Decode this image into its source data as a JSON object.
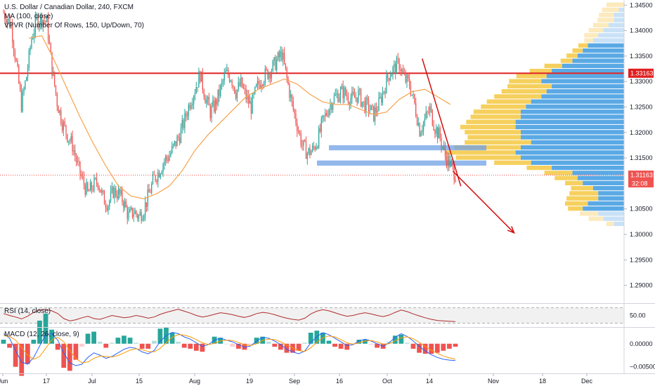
{
  "legend": {
    "title": "U.S. Dollar / Canadian Dollar, 240, FXCM",
    "ma": "MA (100, close)",
    "vpvr": "VPVR (Number Of Rows, 150, Up/Down, 70)",
    "rsi": "RSI (14, close)",
    "macd": "MACD (12, 26, close, 9)"
  },
  "price_labels": {
    "resistance": "1.33163",
    "current": "1.31163",
    "countdown": "32:08"
  },
  "colors": {
    "up": "#26a69a",
    "down": "#ef5350",
    "ma": "#f7a24b",
    "resistance": "#e02020",
    "zone": "#6fa0e6",
    "vp_up": "#f5c842",
    "vp_down": "#3d9ae0",
    "rsi": "#b02c2c",
    "macd": "#2962ff",
    "signal": "#ff9800",
    "arrow": "#d01010"
  },
  "chart_data": [
    {
      "type": "candlestick",
      "title": "U.S. Dollar / Canadian Dollar, 240, FXCM",
      "x_ticks": [
        "Jun",
        "17",
        "Jul",
        "15",
        "Aug",
        "19",
        "Sep",
        "16",
        "Oct",
        "14",
        "Nov",
        "18",
        "Dec"
      ],
      "y_ticks": [
        1.345,
        1.34,
        1.335,
        1.33,
        1.325,
        1.32,
        1.315,
        1.305,
        1.3,
        1.295,
        1.29
      ],
      "y_tick_labels": [
        "1.34500",
        "1.34000",
        "1.33500",
        "1.33000",
        "1.32500",
        "1.32000",
        "1.31500",
        "1.30500",
        "1.30000",
        "1.29500",
        "1.29000"
      ],
      "ylim": [
        1.2865,
        1.346
      ],
      "close_trend": [
        [
          0,
          1.3435
        ],
        [
          3,
          1.341
        ],
        [
          5,
          1.3335
        ],
        [
          7,
          1.3255
        ],
        [
          9,
          1.331
        ],
        [
          11,
          1.3385
        ],
        [
          13,
          1.342
        ],
        [
          15,
          1.3425
        ],
        [
          17,
          1.3415
        ],
        [
          19,
          1.3325
        ],
        [
          21,
          1.326
        ],
        [
          23,
          1.322
        ],
        [
          25,
          1.3195
        ],
        [
          27,
          1.3175
        ],
        [
          29,
          1.3135
        ],
        [
          31,
          1.3105
        ],
        [
          33,
          1.308
        ],
        [
          35,
          1.3095
        ],
        [
          37,
          1.3105
        ],
        [
          39,
          1.307
        ],
        [
          41,
          1.306
        ],
        [
          43,
          1.3085
        ],
        [
          45,
          1.308
        ],
        [
          47,
          1.3065
        ],
        [
          49,
          1.3035
        ],
        [
          51,
          1.3045
        ],
        [
          53,
          1.3035
        ],
        [
          55,
          1.305
        ],
        [
          57,
          1.308
        ],
        [
          59,
          1.311
        ],
        [
          61,
          1.3125
        ],
        [
          63,
          1.3145
        ],
        [
          65,
          1.3155
        ],
        [
          67,
          1.3175
        ],
        [
          69,
          1.3195
        ],
        [
          71,
          1.3225
        ],
        [
          73,
          1.326
        ],
        [
          75,
          1.3285
        ],
        [
          77,
          1.3315
        ],
        [
          79,
          1.327
        ],
        [
          81,
          1.324
        ],
        [
          83,
          1.3255
        ],
        [
          85,
          1.3285
        ],
        [
          87,
          1.3315
        ],
        [
          89,
          1.331
        ],
        [
          91,
          1.328
        ],
        [
          93,
          1.3295
        ],
        [
          95,
          1.327
        ],
        [
          97,
          1.325
        ],
        [
          99,
          1.3285
        ],
        [
          101,
          1.3305
        ],
        [
          103,
          1.3315
        ],
        [
          105,
          1.3325
        ],
        [
          107,
          1.334
        ],
        [
          109,
          1.3355
        ],
        [
          111,
          1.3305
        ],
        [
          113,
          1.3255
        ],
        [
          115,
          1.3215
        ],
        [
          117,
          1.3175
        ],
        [
          119,
          1.316
        ],
        [
          121,
          1.3165
        ],
        [
          123,
          1.3185
        ],
        [
          125,
          1.322
        ],
        [
          127,
          1.3245
        ],
        [
          129,
          1.3265
        ],
        [
          131,
          1.3275
        ],
        [
          133,
          1.328
        ],
        [
          135,
          1.327
        ],
        [
          137,
          1.3265
        ],
        [
          139,
          1.3275
        ],
        [
          141,
          1.3255
        ],
        [
          143,
          1.325
        ],
        [
          145,
          1.3235
        ],
        [
          147,
          1.3255
        ],
        [
          149,
          1.3285
        ],
        [
          151,
          1.3315
        ],
        [
          153,
          1.3325
        ],
        [
          155,
          1.3335
        ],
        [
          157,
          1.3305
        ],
        [
          159,
          1.3295
        ],
        [
          161,
          1.3255
        ],
        [
          163,
          1.3205
        ],
        [
          165,
          1.3225
        ],
        [
          167,
          1.3245
        ],
        [
          169,
          1.321
        ],
        [
          171,
          1.319
        ],
        [
          173,
          1.3155
        ],
        [
          175,
          1.3135
        ],
        [
          177,
          1.3118
        ]
      ],
      "ma_100": [
        [
          10,
          1.3385
        ],
        [
          15,
          1.339
        ],
        [
          20,
          1.334
        ],
        [
          25,
          1.3285
        ],
        [
          30,
          1.323
        ],
        [
          35,
          1.318
        ],
        [
          40,
          1.3135
        ],
        [
          45,
          1.3095
        ],
        [
          50,
          1.3075
        ],
        [
          55,
          1.307
        ],
        [
          60,
          1.308
        ],
        [
          65,
          1.3095
        ],
        [
          70,
          1.3125
        ],
        [
          75,
          1.3165
        ],
        [
          80,
          1.3195
        ],
        [
          85,
          1.322
        ],
        [
          90,
          1.3245
        ],
        [
          95,
          1.327
        ],
        [
          100,
          1.3285
        ],
        [
          105,
          1.3295
        ],
        [
          110,
          1.3305
        ],
        [
          115,
          1.3295
        ],
        [
          120,
          1.3275
        ],
        [
          125,
          1.326
        ],
        [
          130,
          1.3255
        ],
        [
          135,
          1.3255
        ],
        [
          140,
          1.3245
        ],
        [
          145,
          1.3235
        ],
        [
          150,
          1.324
        ],
        [
          155,
          1.3265
        ],
        [
          160,
          1.328
        ],
        [
          165,
          1.3285
        ],
        [
          170,
          1.327
        ],
        [
          175,
          1.3255
        ]
      ],
      "resistance_level": 1.33163,
      "current_price": 1.31163,
      "support_zones": [
        {
          "from": 1.3165,
          "to": 1.3175
        },
        {
          "from": 1.3135,
          "to": 1.3145
        }
      ],
      "volume_profile": [
        [
          1.345,
          0.12,
          0.0
        ],
        [
          1.344,
          0.14,
          0.01
        ],
        [
          1.343,
          0.15,
          0.02
        ],
        [
          1.342,
          0.16,
          0.02
        ],
        [
          1.341,
          0.18,
          0.03
        ],
        [
          1.34,
          0.2,
          0.04
        ],
        [
          1.339,
          0.22,
          0.05
        ],
        [
          1.338,
          0.21,
          0.06
        ],
        [
          1.337,
          0.24,
          0.07
        ],
        [
          1.336,
          0.27,
          0.08
        ],
        [
          1.335,
          0.3,
          0.09
        ],
        [
          1.334,
          0.33,
          0.1
        ],
        [
          1.333,
          0.42,
          0.12
        ],
        [
          1.332,
          0.5,
          0.14
        ],
        [
          1.331,
          0.58,
          0.15
        ],
        [
          1.33,
          0.62,
          0.16
        ],
        [
          1.329,
          0.65,
          0.14
        ],
        [
          1.328,
          0.68,
          0.15
        ],
        [
          1.327,
          0.72,
          0.16
        ],
        [
          1.326,
          0.75,
          0.18
        ],
        [
          1.325,
          0.78,
          0.19
        ],
        [
          1.324,
          0.82,
          0.2
        ],
        [
          1.323,
          0.84,
          0.2
        ],
        [
          1.322,
          0.86,
          0.21
        ],
        [
          1.321,
          0.9,
          0.21
        ],
        [
          1.32,
          0.88,
          0.2
        ],
        [
          1.319,
          0.86,
          0.2
        ],
        [
          1.318,
          0.9,
          0.18
        ],
        [
          1.317,
          0.95,
          0.2
        ],
        [
          1.316,
          1.0,
          0.21
        ],
        [
          1.315,
          0.94,
          0.2
        ],
        [
          1.314,
          0.7,
          0.18
        ],
        [
          1.313,
          0.52,
          0.14
        ],
        [
          1.312,
          0.44,
          0.1
        ],
        [
          1.311,
          0.38,
          0.09
        ],
        [
          1.31,
          0.32,
          0.08
        ],
        [
          1.309,
          0.3,
          0.06
        ],
        [
          1.308,
          0.32,
          0.05
        ],
        [
          1.307,
          0.34,
          0.05
        ],
        [
          1.306,
          0.33,
          0.07
        ],
        [
          1.305,
          0.3,
          0.08
        ],
        [
          1.304,
          0.25,
          0.05
        ],
        [
          1.303,
          0.2,
          0.04
        ],
        [
          1.302,
          0.1,
          0.02
        ]
      ],
      "projection": {
        "from": [
          176,
          1.3124
        ],
        "to": [
          200,
          1.3003
        ]
      },
      "trendline": {
        "from": [
          164,
          1.3345
        ],
        "to": [
          175,
          1.3136
        ]
      }
    },
    {
      "type": "line",
      "title": "RSI (14, close)",
      "y_ticks": [
        50
      ],
      "y_tick_labels": [
        "50.00"
      ],
      "ylim": [
        20,
        80
      ],
      "guides": [
        70,
        30
      ],
      "band": [
        30,
        70
      ],
      "x_range": [
        0,
        177
      ],
      "values": [
        55,
        50,
        46,
        41,
        48,
        58,
        64,
        66,
        62,
        55,
        42,
        36,
        39,
        44,
        48,
        42,
        40,
        45,
        50,
        47,
        44,
        46,
        50,
        47,
        43,
        46,
        53,
        58,
        62,
        66,
        61,
        56,
        50,
        46,
        49,
        53,
        57,
        55,
        52,
        48,
        45,
        49,
        55,
        58,
        56,
        52,
        47,
        43,
        40,
        38,
        43,
        54,
        61,
        65,
        62,
        57,
        52,
        48,
        50,
        54,
        57,
        54,
        50,
        47,
        51,
        58,
        64,
        60,
        54,
        49,
        44,
        40,
        37,
        36,
        35,
        34
      ]
    },
    {
      "type": "bar",
      "title": "MACD (12, 26, close, 9)",
      "y_ticks": [
        0.0,
        -0.005
      ],
      "y_tick_labels": [
        "0.00000",
        "−0.00500"
      ],
      "ylim": [
        -0.0065,
        0.0035
      ],
      "x_range": [
        0,
        177
      ],
      "macd": [
        0.0022,
        0.0012,
        -0.0015,
        -0.004,
        -0.0045,
        -0.003,
        -0.0005,
        0.002,
        0.0022,
        0.0008,
        -0.002,
        -0.0042,
        -0.0048,
        -0.0045,
        -0.003,
        -0.002,
        -0.0025,
        -0.0032,
        -0.0028,
        -0.002,
        -0.0012,
        -0.0008,
        -0.001,
        -0.0018,
        -0.0022,
        -0.0015,
        0.0005,
        0.0018,
        0.0025,
        0.0022,
        0.0015,
        0.001,
        0.0002,
        -0.0006,
        -0.0002,
        0.0008,
        0.0012,
        0.0008,
        0.0004,
        -0.0002,
        -0.0008,
        -0.0005,
        0.0006,
        0.0014,
        0.0012,
        0.0006,
        -0.0002,
        -0.0012,
        -0.0018,
        -0.0022,
        -0.0016,
        0.0002,
        0.0016,
        0.0024,
        0.002,
        0.0012,
        0.0004,
        -0.0004,
        -0.0002,
        0.0006,
        0.001,
        0.0006,
        0.0,
        -0.0006,
        0.0002,
        0.0014,
        0.0022,
        0.0016,
        0.0006,
        -0.0006,
        -0.0016,
        -0.0024,
        -0.003,
        -0.0034,
        -0.0036,
        -0.0037
      ],
      "signal": [
        0.0018,
        0.0016,
        0.0008,
        -0.0008,
        -0.0025,
        -0.0034,
        -0.0028,
        -0.001,
        0.0008,
        0.0014,
        0.0004,
        -0.0015,
        -0.0032,
        -0.0042,
        -0.004,
        -0.0032,
        -0.0027,
        -0.0028,
        -0.0029,
        -0.0026,
        -0.002,
        -0.0014,
        -0.0011,
        -0.0013,
        -0.0017,
        -0.0018,
        -0.001,
        0.0002,
        0.0014,
        0.002,
        0.0019,
        0.0015,
        0.0009,
        0.0002,
        -0.0002,
        0.0001,
        0.0006,
        0.0008,
        0.0007,
        0.0003,
        -0.0002,
        -0.0004,
        0.0,
        0.0007,
        0.001,
        0.0009,
        0.0004,
        -0.0003,
        -0.0009,
        -0.0015,
        -0.0017,
        -0.0009,
        0.0003,
        0.0013,
        0.0017,
        0.0015,
        0.0009,
        0.0002,
        -0.0001,
        0.0002,
        0.0006,
        0.0007,
        0.0004,
        -0.0001,
        0.0,
        0.0006,
        0.0013,
        0.0015,
        0.0011,
        0.0003,
        -0.0006,
        -0.0014,
        -0.0021,
        -0.0027,
        -0.0031,
        -0.0034
      ]
    }
  ]
}
